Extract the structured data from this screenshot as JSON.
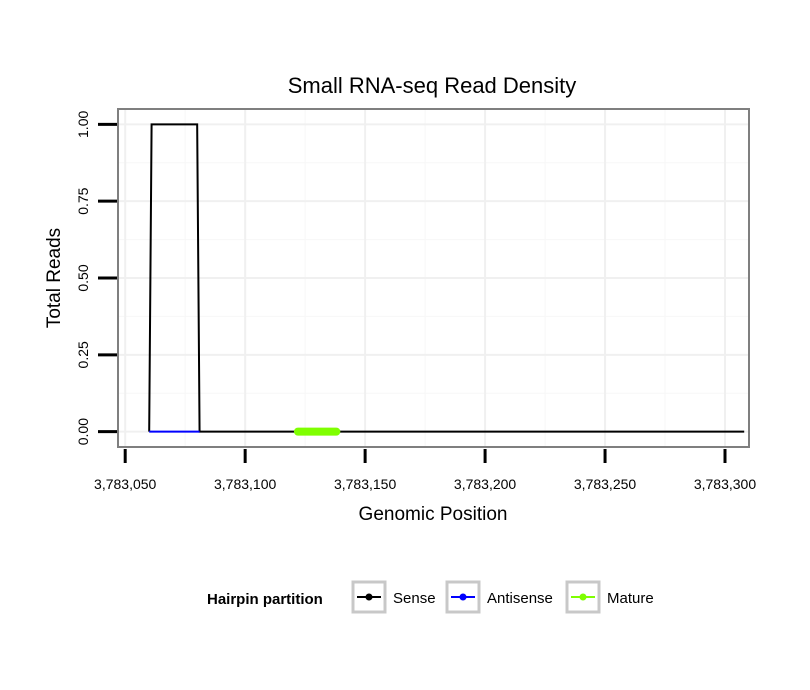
{
  "chart_data": {
    "type": "line",
    "title": "Small RNA-seq Read Density",
    "xlabel": "Genomic Position",
    "ylabel": "Total Reads",
    "xlim": [
      3783047,
      3783310
    ],
    "ylim": [
      -0.05,
      1.05
    ],
    "x_ticks": [
      3783050,
      3783100,
      3783150,
      3783200,
      3783250,
      3783300
    ],
    "x_tick_labels": [
      "3,783,050",
      "3,783,100",
      "3,783,150",
      "3,783,200",
      "3,783,250",
      "3,783,300"
    ],
    "y_ticks": [
      0,
      0.25,
      0.5,
      0.75,
      1.0
    ],
    "y_tick_labels": [
      "0.00",
      "0.25",
      "0.50",
      "0.75",
      "1.00"
    ],
    "grid": true,
    "legend": {
      "title": "Hairpin partition",
      "position": "bottom",
      "entries": [
        {
          "name": "Sense",
          "color": "#000000"
        },
        {
          "name": "Antisense",
          "color": "#0000ff"
        },
        {
          "name": "Mature",
          "color": "#7fff00"
        }
      ]
    },
    "series": [
      {
        "name": "Sense",
        "color": "#000000",
        "x": [
          3783060,
          3783061,
          3783080,
          3783081,
          3783308
        ],
        "y": [
          0,
          1,
          1,
          0,
          0
        ]
      },
      {
        "name": "Antisense",
        "color": "#0000ff",
        "x": [
          3783060,
          3783081
        ],
        "y": [
          0,
          0
        ]
      },
      {
        "name": "Mature",
        "color": "#7fff00",
        "x": [
          3783122,
          3783138
        ],
        "y": [
          0,
          0
        ]
      }
    ]
  }
}
